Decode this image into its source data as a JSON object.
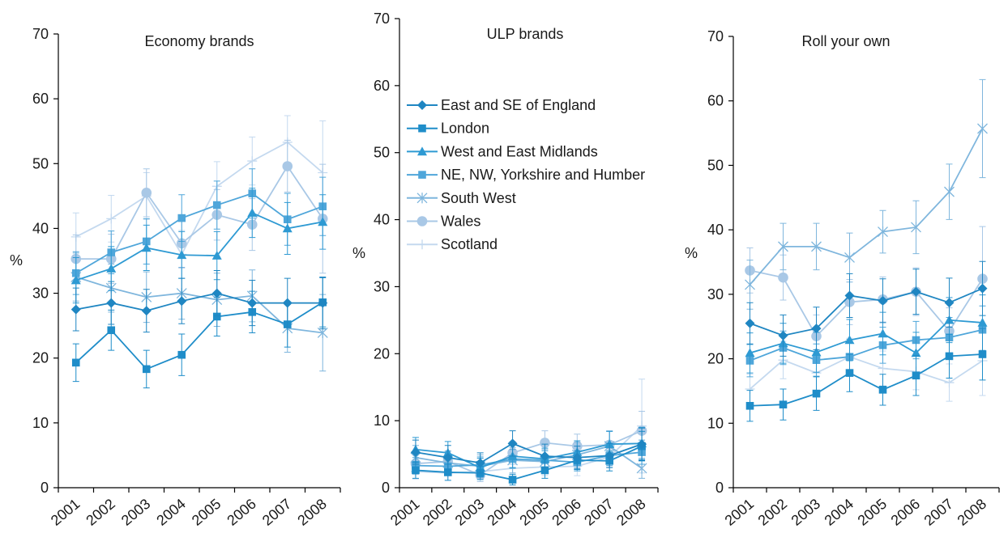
{
  "series_styles": [
    {
      "name": "East and SE of England",
      "color": "#1f86c2",
      "marker": "diamond"
    },
    {
      "name": "London",
      "color": "#1f8dc9",
      "marker": "square"
    },
    {
      "name": "West and East Midlands",
      "color": "#2e9ad3",
      "marker": "triangle"
    },
    {
      "name": "NE, NW, Yorkshire and Humber",
      "color": "#4fa6da",
      "marker": "square"
    },
    {
      "name": "South West",
      "color": "#7fb6dd",
      "marker": "x"
    },
    {
      "name": "Wales",
      "color": "#a9c8e6",
      "marker": "circle"
    },
    {
      "name": "Scotland",
      "color": "#c4d9ef",
      "marker": "plus"
    }
  ],
  "chart_data": [
    {
      "type": "line",
      "title": "Economy brands",
      "xlabel": "",
      "ylabel": "%",
      "ylim": [
        0,
        70
      ],
      "yticks": [
        "0",
        "10",
        "20",
        "30",
        "40",
        "50",
        "60",
        "70"
      ],
      "categories": [
        "2001",
        "2002",
        "2003",
        "2004",
        "2005",
        "2006",
        "2007",
        "2008"
      ],
      "legend": false,
      "series": [
        {
          "name": "East and SE of England",
          "values": [
            27.5,
            28.5,
            27.3,
            28.8,
            30.0,
            28.5,
            28.5,
            28.5
          ],
          "errors": [
            3.3,
            3.3,
            3.3,
            3.5,
            3.5,
            3.5,
            3.8,
            4.0
          ]
        },
        {
          "name": "London",
          "values": [
            19.3,
            24.3,
            18.3,
            20.5,
            26.4,
            27.1,
            25.2,
            28.6
          ],
          "errors": [
            2.9,
            3.1,
            2.9,
            3.2,
            3.0,
            3.2,
            3.5,
            3.8
          ]
        },
        {
          "name": "West and East Midlands",
          "values": [
            32.0,
            33.8,
            37.0,
            35.9,
            35.8,
            42.4,
            40.0,
            41.0
          ],
          "errors": [
            3.5,
            3.4,
            3.5,
            3.6,
            3.7,
            3.8,
            4.0,
            4.2
          ]
        },
        {
          "name": "NE, NW, Yorkshire and Humber",
          "values": [
            33.1,
            36.3,
            38.0,
            41.6,
            43.6,
            45.4,
            41.4,
            43.4
          ],
          "errors": [
            3.3,
            3.3,
            3.5,
            3.6,
            3.7,
            3.8,
            4.0,
            4.5
          ]
        },
        {
          "name": "South West",
          "values": [
            32.5,
            30.8,
            29.4,
            30.0,
            29.0,
            29.6,
            24.6,
            23.9
          ],
          "errors": [
            3.7,
            3.7,
            3.9,
            4.0,
            4.1,
            4.0,
            3.7,
            5.9
          ]
        },
        {
          "name": "Wales",
          "values": [
            35.3,
            35.3,
            45.5,
            37.7,
            42.1,
            40.6,
            49.6,
            41.5
          ],
          "errors": [
            3.7,
            3.8,
            3.7,
            3.8,
            3.9,
            4.0,
            4.0,
            8.4
          ]
        },
        {
          "name": "Scotland",
          "values": [
            38.7,
            41.5,
            45.0,
            36.0,
            46.5,
            50.4,
            53.3,
            48.6
          ],
          "errors": [
            3.7,
            3.6,
            3.6,
            3.7,
            3.8,
            3.7,
            4.1,
            8.0
          ]
        }
      ]
    },
    {
      "type": "line",
      "title": "ULP brands",
      "xlabel": "",
      "ylabel": "%",
      "ylim": [
        0,
        70
      ],
      "yticks": [
        "0",
        "10",
        "20",
        "30",
        "40",
        "50",
        "60",
        "70"
      ],
      "categories": [
        "2001",
        "2002",
        "2003",
        "2004",
        "2005",
        "2006",
        "2007",
        "2008"
      ],
      "legend": true,
      "legend_position": "top-left",
      "series": [
        {
          "name": "East and SE of England",
          "values": [
            5.3,
            4.5,
            3.7,
            6.6,
            4.7,
            4.5,
            4.8,
            6.5
          ],
          "errors": [
            1.8,
            1.8,
            1.5,
            1.9,
            1.8,
            1.7,
            1.8,
            2.4
          ]
        },
        {
          "name": "London",
          "values": [
            2.6,
            2.3,
            2.2,
            1.2,
            2.6,
            4.1,
            4.0,
            6.2
          ],
          "errors": [
            1.2,
            1.2,
            1.0,
            0.8,
            1.2,
            1.4,
            1.5,
            2.2
          ]
        },
        {
          "name": "West and East Midlands",
          "values": [
            5.7,
            5.2,
            3.0,
            4.7,
            4.3,
            5.3,
            6.5,
            6.6
          ],
          "errors": [
            1.8,
            1.7,
            1.4,
            1.7,
            1.6,
            1.7,
            1.9,
            2.4
          ]
        },
        {
          "name": "NE, NW, Yorkshire and Humber",
          "values": [
            3.3,
            3.2,
            3.4,
            4.3,
            4.1,
            3.8,
            4.8,
            5.3
          ],
          "errors": [
            1.2,
            1.2,
            1.2,
            1.4,
            1.4,
            1.3,
            1.5,
            1.8
          ]
        },
        {
          "name": "South West",
          "values": [
            4.5,
            3.7,
            3.2,
            4.1,
            3.9,
            4.9,
            6.2,
            2.9
          ],
          "errors": [
            1.8,
            1.8,
            1.7,
            1.9,
            1.8,
            1.9,
            2.3,
            1.5
          ]
        },
        {
          "name": "Wales",
          "values": [
            3.6,
            3.9,
            1.9,
            5.2,
            6.7,
            6.2,
            6.4,
            8.5
          ],
          "errors": [
            1.6,
            1.5,
            1.0,
            1.7,
            1.8,
            1.8,
            2.0,
            2.9
          ]
        },
        {
          "name": "Scotland",
          "values": [
            2.4,
            2.2,
            2.4,
            2.9,
            3.1,
            3.2,
            4.6,
            9.2
          ],
          "errors": [
            1.1,
            1.1,
            1.2,
            1.3,
            1.3,
            1.4,
            1.5,
            7.0
          ]
        }
      ]
    },
    {
      "type": "line",
      "title": "Roll your own",
      "xlabel": "",
      "ylabel": "%",
      "ylim": [
        0,
        70
      ],
      "yticks": [
        "0",
        "10",
        "20",
        "30",
        "40",
        "50",
        "60",
        "70"
      ],
      "categories": [
        "2001",
        "2002",
        "2003",
        "2004",
        "2005",
        "2006",
        "2007",
        "2008"
      ],
      "legend": false,
      "series": [
        {
          "name": "East and SE of England",
          "values": [
            25.5,
            23.6,
            24.7,
            29.8,
            29.0,
            30.4,
            28.7,
            30.9
          ],
          "errors": [
            3.2,
            3.2,
            3.3,
            3.4,
            3.4,
            3.5,
            3.8,
            4.2
          ]
        },
        {
          "name": "London",
          "values": [
            12.7,
            12.9,
            14.6,
            17.8,
            15.2,
            17.4,
            20.4,
            20.7
          ],
          "errors": [
            2.4,
            2.4,
            2.6,
            2.9,
            2.4,
            3.1,
            3.4,
            4.0
          ]
        },
        {
          "name": "West and East Midlands",
          "values": [
            20.9,
            22.4,
            21.0,
            22.9,
            23.9,
            20.9,
            26.0,
            25.6
          ],
          "errors": [
            3.1,
            3.1,
            3.1,
            3.2,
            3.3,
            3.2,
            3.5,
            4.3
          ]
        },
        {
          "name": "NE, NW, Yorkshire and Humber",
          "values": [
            19.7,
            21.7,
            19.8,
            20.3,
            22.1,
            22.9,
            23.3,
            24.5
          ],
          "errors": [
            2.5,
            2.6,
            2.5,
            2.7,
            2.8,
            2.9,
            3.1,
            3.7
          ]
        },
        {
          "name": "South West",
          "values": [
            31.5,
            37.4,
            37.4,
            35.7,
            39.7,
            40.4,
            45.9,
            55.7
          ],
          "errors": [
            3.8,
            3.6,
            3.6,
            3.8,
            3.3,
            4.1,
            4.3,
            7.6
          ]
        },
        {
          "name": "Wales",
          "values": [
            33.7,
            32.6,
            23.5,
            28.8,
            29.2,
            30.4,
            24.3,
            32.4
          ],
          "errors": [
            3.5,
            3.5,
            3.3,
            3.5,
            3.5,
            3.7,
            3.6,
            8.1
          ]
        },
        {
          "name": "Scotland",
          "values": [
            15.3,
            19.8,
            17.8,
            20.3,
            18.5,
            18.0,
            16.3,
            19.7
          ],
          "errors": [
            2.3,
            2.9,
            2.8,
            2.9,
            2.7,
            2.8,
            2.9,
            5.4
          ]
        }
      ]
    }
  ]
}
